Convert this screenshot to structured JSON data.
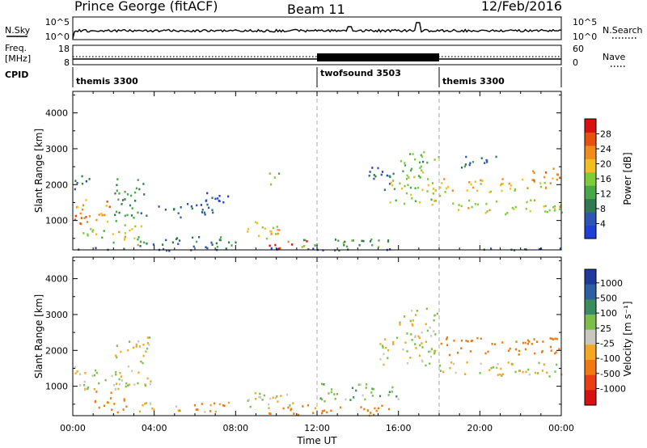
{
  "header": {
    "station": "Prince George (fitACF)",
    "beam": "Beam 11",
    "date": "12/Feb/2016"
  },
  "colors": {
    "power_scale": [
      "#1f3fd6",
      "#2d56b3",
      "#2f7a50",
      "#48a848",
      "#7fcb3c",
      "#f0c020",
      "#f08c1a",
      "#e85010",
      "#d81010"
    ],
    "velocity_scale": [
      "#1e3a9a",
      "#2c5fa3",
      "#3a8c5c",
      "#7bbf4a",
      "#c8c8c0",
      "#f2a820",
      "#f07a10",
      "#e84010",
      "#d81010"
    ]
  },
  "chart_data": [
    {
      "type": "line",
      "name": "nsky-nsearch-panel",
      "left_label": "N.Sky",
      "right_label": "N.Search",
      "left_ticks": [
        "10^5",
        "10^0"
      ],
      "right_ticks": [
        "10^5",
        "10^0"
      ],
      "x_range_hours": [
        0,
        24
      ]
    },
    {
      "type": "line",
      "name": "frequency-nave-panel",
      "left_label": "Freq.",
      "left_unit": "[MHz]",
      "right_label": "Nave",
      "left_ticks": [
        "18",
        "8"
      ],
      "right_ticks": [
        "60",
        "0"
      ],
      "x_range_hours": [
        0,
        24
      ]
    },
    {
      "type": "table",
      "name": "cpid-bar",
      "label": "CPID",
      "segments": [
        {
          "start_hour": 0,
          "end_hour": 12,
          "text": "themis 3300"
        },
        {
          "start_hour": 12,
          "end_hour": 18,
          "text": "twofsound 3503"
        },
        {
          "start_hour": 18,
          "end_hour": 24,
          "text": "themis 3300"
        }
      ]
    },
    {
      "type": "heatmap",
      "name": "power-panel",
      "ylabel": "Slant Range [km]",
      "ylim": [
        180,
        4600
      ],
      "yticks": [
        "1000",
        "2000",
        "3000",
        "4000"
      ],
      "colorbar_label": "Power [dB]",
      "colorbar_ticks": [
        "4",
        "8",
        "12",
        "16",
        "20",
        "24",
        "28"
      ],
      "colorbar_range": [
        0,
        32
      ],
      "regions": [
        {
          "t": [
            0.0,
            2.2
          ],
          "r": [
            900,
            1600
          ],
          "v": 24
        },
        {
          "t": [
            0.3,
            2.0
          ],
          "r": [
            400,
            800
          ],
          "v": 16
        },
        {
          "t": [
            0.0,
            1.0
          ],
          "r": [
            1900,
            2300
          ],
          "v": 6
        },
        {
          "t": [
            2.0,
            3.6
          ],
          "r": [
            1000,
            2200
          ],
          "v": 10
        },
        {
          "t": [
            2.2,
            3.4
          ],
          "r": [
            300,
            900
          ],
          "v": 20
        },
        {
          "t": [
            3.0,
            8.0
          ],
          "r": [
            250,
            600
          ],
          "v": 8
        },
        {
          "t": [
            4.0,
            7.0
          ],
          "r": [
            1100,
            1500
          ],
          "v": 6
        },
        {
          "t": [
            6.5,
            8.2
          ],
          "r": [
            1500,
            1900
          ],
          "v": 4
        },
        {
          "t": [
            8.5,
            10.5
          ],
          "r": [
            500,
            1000
          ],
          "v": 18
        },
        {
          "t": [
            9.5,
            11.5
          ],
          "r": [
            200,
            450
          ],
          "v": 28
        },
        {
          "t": [
            9.6,
            10.1
          ],
          "r": [
            1900,
            2400
          ],
          "v": 16
        },
        {
          "t": [
            11.0,
            15.5
          ],
          "r": [
            200,
            500
          ],
          "v": 12
        },
        {
          "t": [
            14.5,
            15.8
          ],
          "r": [
            1800,
            2500
          ],
          "v": 6
        },
        {
          "t": [
            15.5,
            18.0
          ],
          "r": [
            1400,
            2400
          ],
          "v": 16
        },
        {
          "t": [
            16.0,
            18.0
          ],
          "r": [
            2400,
            3000
          ],
          "v": 14
        },
        {
          "t": [
            18.0,
            24.0
          ],
          "r": [
            1800,
            2200
          ],
          "v": 20
        },
        {
          "t": [
            18.5,
            24.0
          ],
          "r": [
            1200,
            1600
          ],
          "v": 18
        },
        {
          "t": [
            22.5,
            24.0
          ],
          "r": [
            2100,
            2500
          ],
          "v": 26
        },
        {
          "t": [
            19.0,
            21.0
          ],
          "r": [
            2500,
            2900
          ],
          "v": 8
        },
        {
          "t": [
            0.0,
            24.0
          ],
          "r": [
            180,
            260
          ],
          "v": 6
        }
      ]
    },
    {
      "type": "heatmap",
      "name": "velocity-panel",
      "ylabel": "Slant Range [km]",
      "ylim": [
        180,
        4600
      ],
      "yticks": [
        "1000",
        "2000",
        "3000",
        "4000"
      ],
      "xlabel": "Time UT",
      "xticks": [
        "00:00",
        "04:00",
        "08:00",
        "12:00",
        "16:00",
        "20:00",
        "00:00"
      ],
      "x_range_hours": [
        0,
        24
      ],
      "colorbar_label": "Velocity [m s⁻¹]",
      "colorbar_ticks": [
        "1000",
        "500",
        "100",
        "25",
        "-25",
        "-100",
        "-500",
        "-1000"
      ],
      "regions": [
        {
          "t": [
            0.0,
            2.2
          ],
          "r": [
            900,
            1600
          ],
          "v": 0
        },
        {
          "t": [
            1.0,
            2.6
          ],
          "r": [
            300,
            900
          ],
          "v": -300
        },
        {
          "t": [
            2.0,
            3.8
          ],
          "r": [
            1000,
            2400
          ],
          "v": 0
        },
        {
          "t": [
            3.0,
            8.0
          ],
          "r": [
            300,
            600
          ],
          "v": -80
        },
        {
          "t": [
            8.5,
            11.0
          ],
          "r": [
            400,
            900
          ],
          "v": 0
        },
        {
          "t": [
            9.5,
            11.5
          ],
          "r": [
            250,
            450
          ],
          "v": -200
        },
        {
          "t": [
            11.0,
            15.5
          ],
          "r": [
            200,
            500
          ],
          "v": -120
        },
        {
          "t": [
            15.0,
            18.0
          ],
          "r": [
            1600,
            2400
          ],
          "v": 0
        },
        {
          "t": [
            16.0,
            18.0
          ],
          "r": [
            2400,
            3200
          ],
          "v": 0
        },
        {
          "t": [
            18.0,
            24.0
          ],
          "r": [
            1300,
            1700
          ],
          "v": 0
        },
        {
          "t": [
            18.0,
            24.0
          ],
          "r": [
            1900,
            2400
          ],
          "v": -400
        },
        {
          "t": [
            12.0,
            16.0
          ],
          "r": [
            600,
            1100
          ],
          "v": 80
        }
      ]
    }
  ]
}
